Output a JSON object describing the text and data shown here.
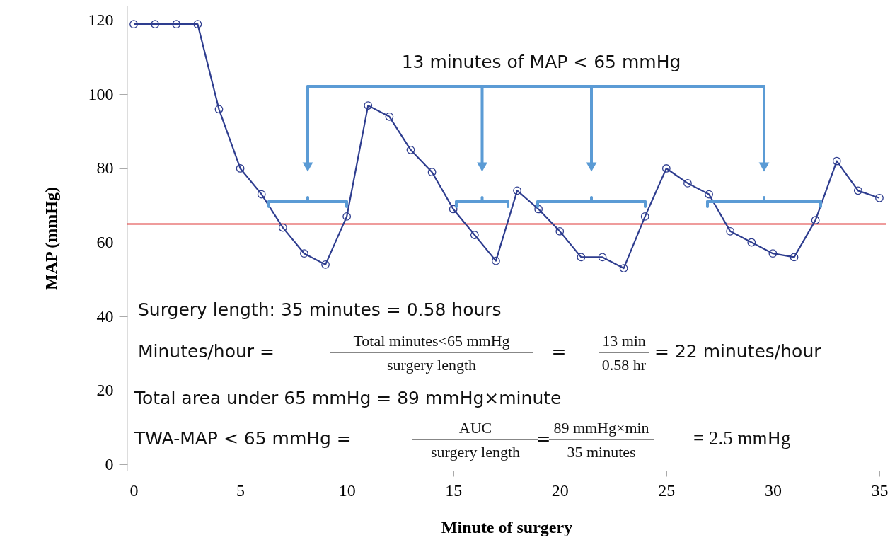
{
  "chart_data": {
    "type": "line",
    "xlabel": "Minute of surgery",
    "ylabel": "MAP (mmHg)",
    "x": [
      0,
      1,
      2,
      3,
      4,
      5,
      6,
      7,
      8,
      9,
      10,
      11,
      12,
      13,
      14,
      15,
      16,
      17,
      18,
      19,
      20,
      21,
      22,
      23,
      24,
      25,
      26,
      27,
      28,
      29,
      30,
      31,
      32,
      33,
      34,
      35
    ],
    "series": [
      {
        "color": "#2e3d8f",
        "values": [
          119,
          119,
          119,
          119,
          96,
          80,
          73,
          64,
          57,
          54,
          67,
          97,
          94,
          85,
          79,
          69,
          62,
          55,
          74,
          69,
          63,
          56,
          56,
          53,
          67,
          80,
          76,
          73,
          63,
          60,
          57,
          56,
          66,
          82,
          74,
          72
        ]
      }
    ],
    "marker": "circle",
    "line_style": "solid",
    "grid": false,
    "xlim": [
      -0.3,
      35.3
    ],
    "ylim": [
      -1.7,
      124
    ],
    "xticks": [
      0,
      5,
      10,
      15,
      20,
      25,
      30,
      35
    ],
    "yticks": [
      0,
      20,
      40,
      60,
      80,
      100,
      120
    ],
    "ref_lines": [
      {
        "axis": "y",
        "value": 65,
        "color": "#e03a3a"
      }
    ],
    "annotations": [
      "13 minutes of MAP < 65 mmHg",
      "Surgery length: 35 minutes = 0.58 hours",
      "Minutes/hour =",
      "Total minutes<65 mmHg",
      "surgery length",
      "=",
      "13 min",
      "0.58 hr",
      "= 22 minutes/hour",
      "Total area under 65 mmHg = 89 mmHg×minute",
      "TWA-MAP < 65 mmHg =",
      "AUC",
      "surgery length",
      "=",
      "89 mmHg×min",
      "35 minutes",
      "= 2.5 mmHg"
    ]
  }
}
